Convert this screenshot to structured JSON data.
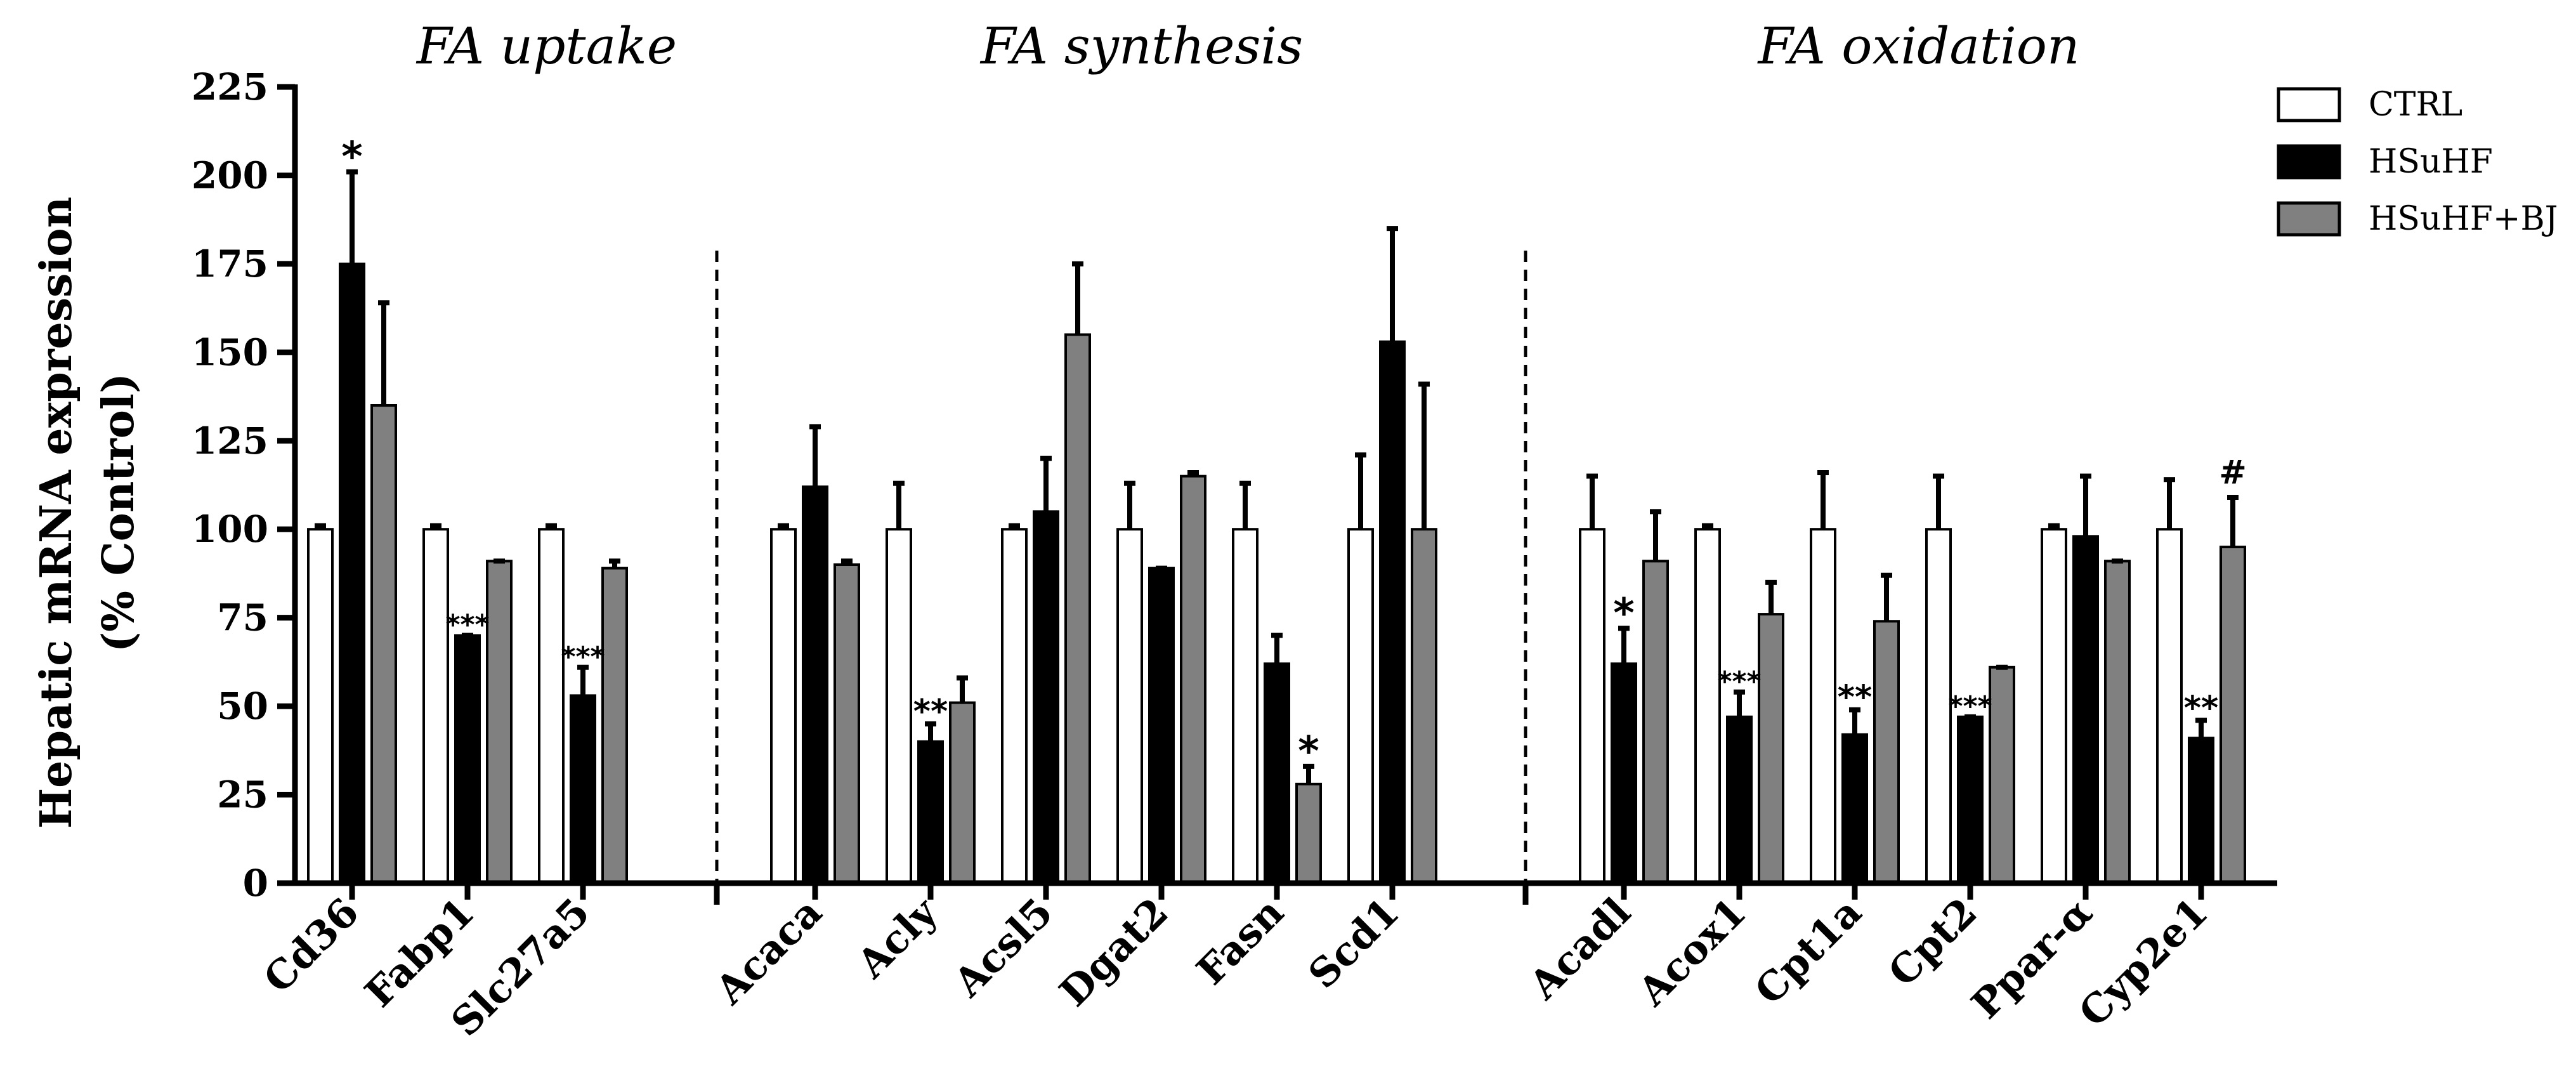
{
  "chart_data": {
    "type": "bar",
    "ylabel_line1": "Hepatic mRNA expression",
    "ylabel_line2": "(% Control)",
    "ylim": [
      0,
      225
    ],
    "yticks": [
      "0",
      "25",
      "50",
      "75",
      "100",
      "125",
      "150",
      "175",
      "200",
      "225"
    ],
    "groups": [
      {
        "title": "FA uptake",
        "categories": [
          "Cd36",
          "Fabp1",
          "Slc27a5"
        ]
      },
      {
        "title": "FA synthesis",
        "categories": [
          "Acaca",
          "Acly",
          "Acsl5",
          "Dgat2",
          "Fasn",
          "Scd1"
        ]
      },
      {
        "title": "FA oxidation",
        "categories": [
          "Acadl",
          "Acox1",
          "Cpt1a",
          "Cpt2",
          "Ppar-α",
          "Cyp2e1"
        ]
      }
    ],
    "series": [
      {
        "name": "CTRL",
        "color": "#ffffff",
        "values": [
          100,
          100,
          100,
          100,
          100,
          100,
          100,
          100,
          100,
          100,
          100,
          100,
          100,
          100,
          100
        ],
        "errors": [
          1,
          1,
          1,
          1,
          13,
          1,
          13,
          13,
          21,
          15,
          1,
          16,
          15,
          1,
          14
        ]
      },
      {
        "name": "HSuHF",
        "color": "#000000",
        "values": [
          175,
          70,
          53,
          112,
          40,
          105,
          89,
          62,
          153,
          62,
          47,
          42,
          47,
          98,
          41
        ],
        "errors": [
          26,
          0,
          8,
          17,
          5,
          15,
          0,
          8,
          32,
          10,
          7,
          7,
          0,
          17,
          5
        ]
      },
      {
        "name": "HSuHF+BJ",
        "color": "#808080",
        "values": [
          135,
          91,
          89,
          90,
          51,
          155,
          115,
          28,
          100,
          91,
          76,
          74,
          61,
          91,
          95
        ],
        "errors": [
          29,
          0,
          2,
          1,
          7,
          20,
          1,
          5,
          41,
          14,
          9,
          13,
          0,
          0,
          14
        ]
      }
    ],
    "annotations": [
      {
        "category": "Cd36",
        "series": "HSuHF",
        "text": "*"
      },
      {
        "category": "Fabp1",
        "series": "HSuHF",
        "text": "***"
      },
      {
        "category": "Slc27a5",
        "series": "HSuHF",
        "text": "***"
      },
      {
        "category": "Acly",
        "series": "HSuHF",
        "text": "**"
      },
      {
        "category": "Fasn",
        "series": "HSuHF+BJ",
        "text": "*"
      },
      {
        "category": "Acadl",
        "series": "HSuHF",
        "text": "*"
      },
      {
        "category": "Acox1",
        "series": "HSuHF",
        "text": "***"
      },
      {
        "category": "Cpt1a",
        "series": "HSuHF",
        "text": "**"
      },
      {
        "category": "Cpt2",
        "series": "HSuHF",
        "text": "***"
      },
      {
        "category": "Cyp2e1",
        "series": "HSuHF",
        "text": "**"
      },
      {
        "category": "Cyp2e1",
        "series": "HSuHF+BJ",
        "text": "#"
      }
    ],
    "legend_position": "top-right"
  }
}
